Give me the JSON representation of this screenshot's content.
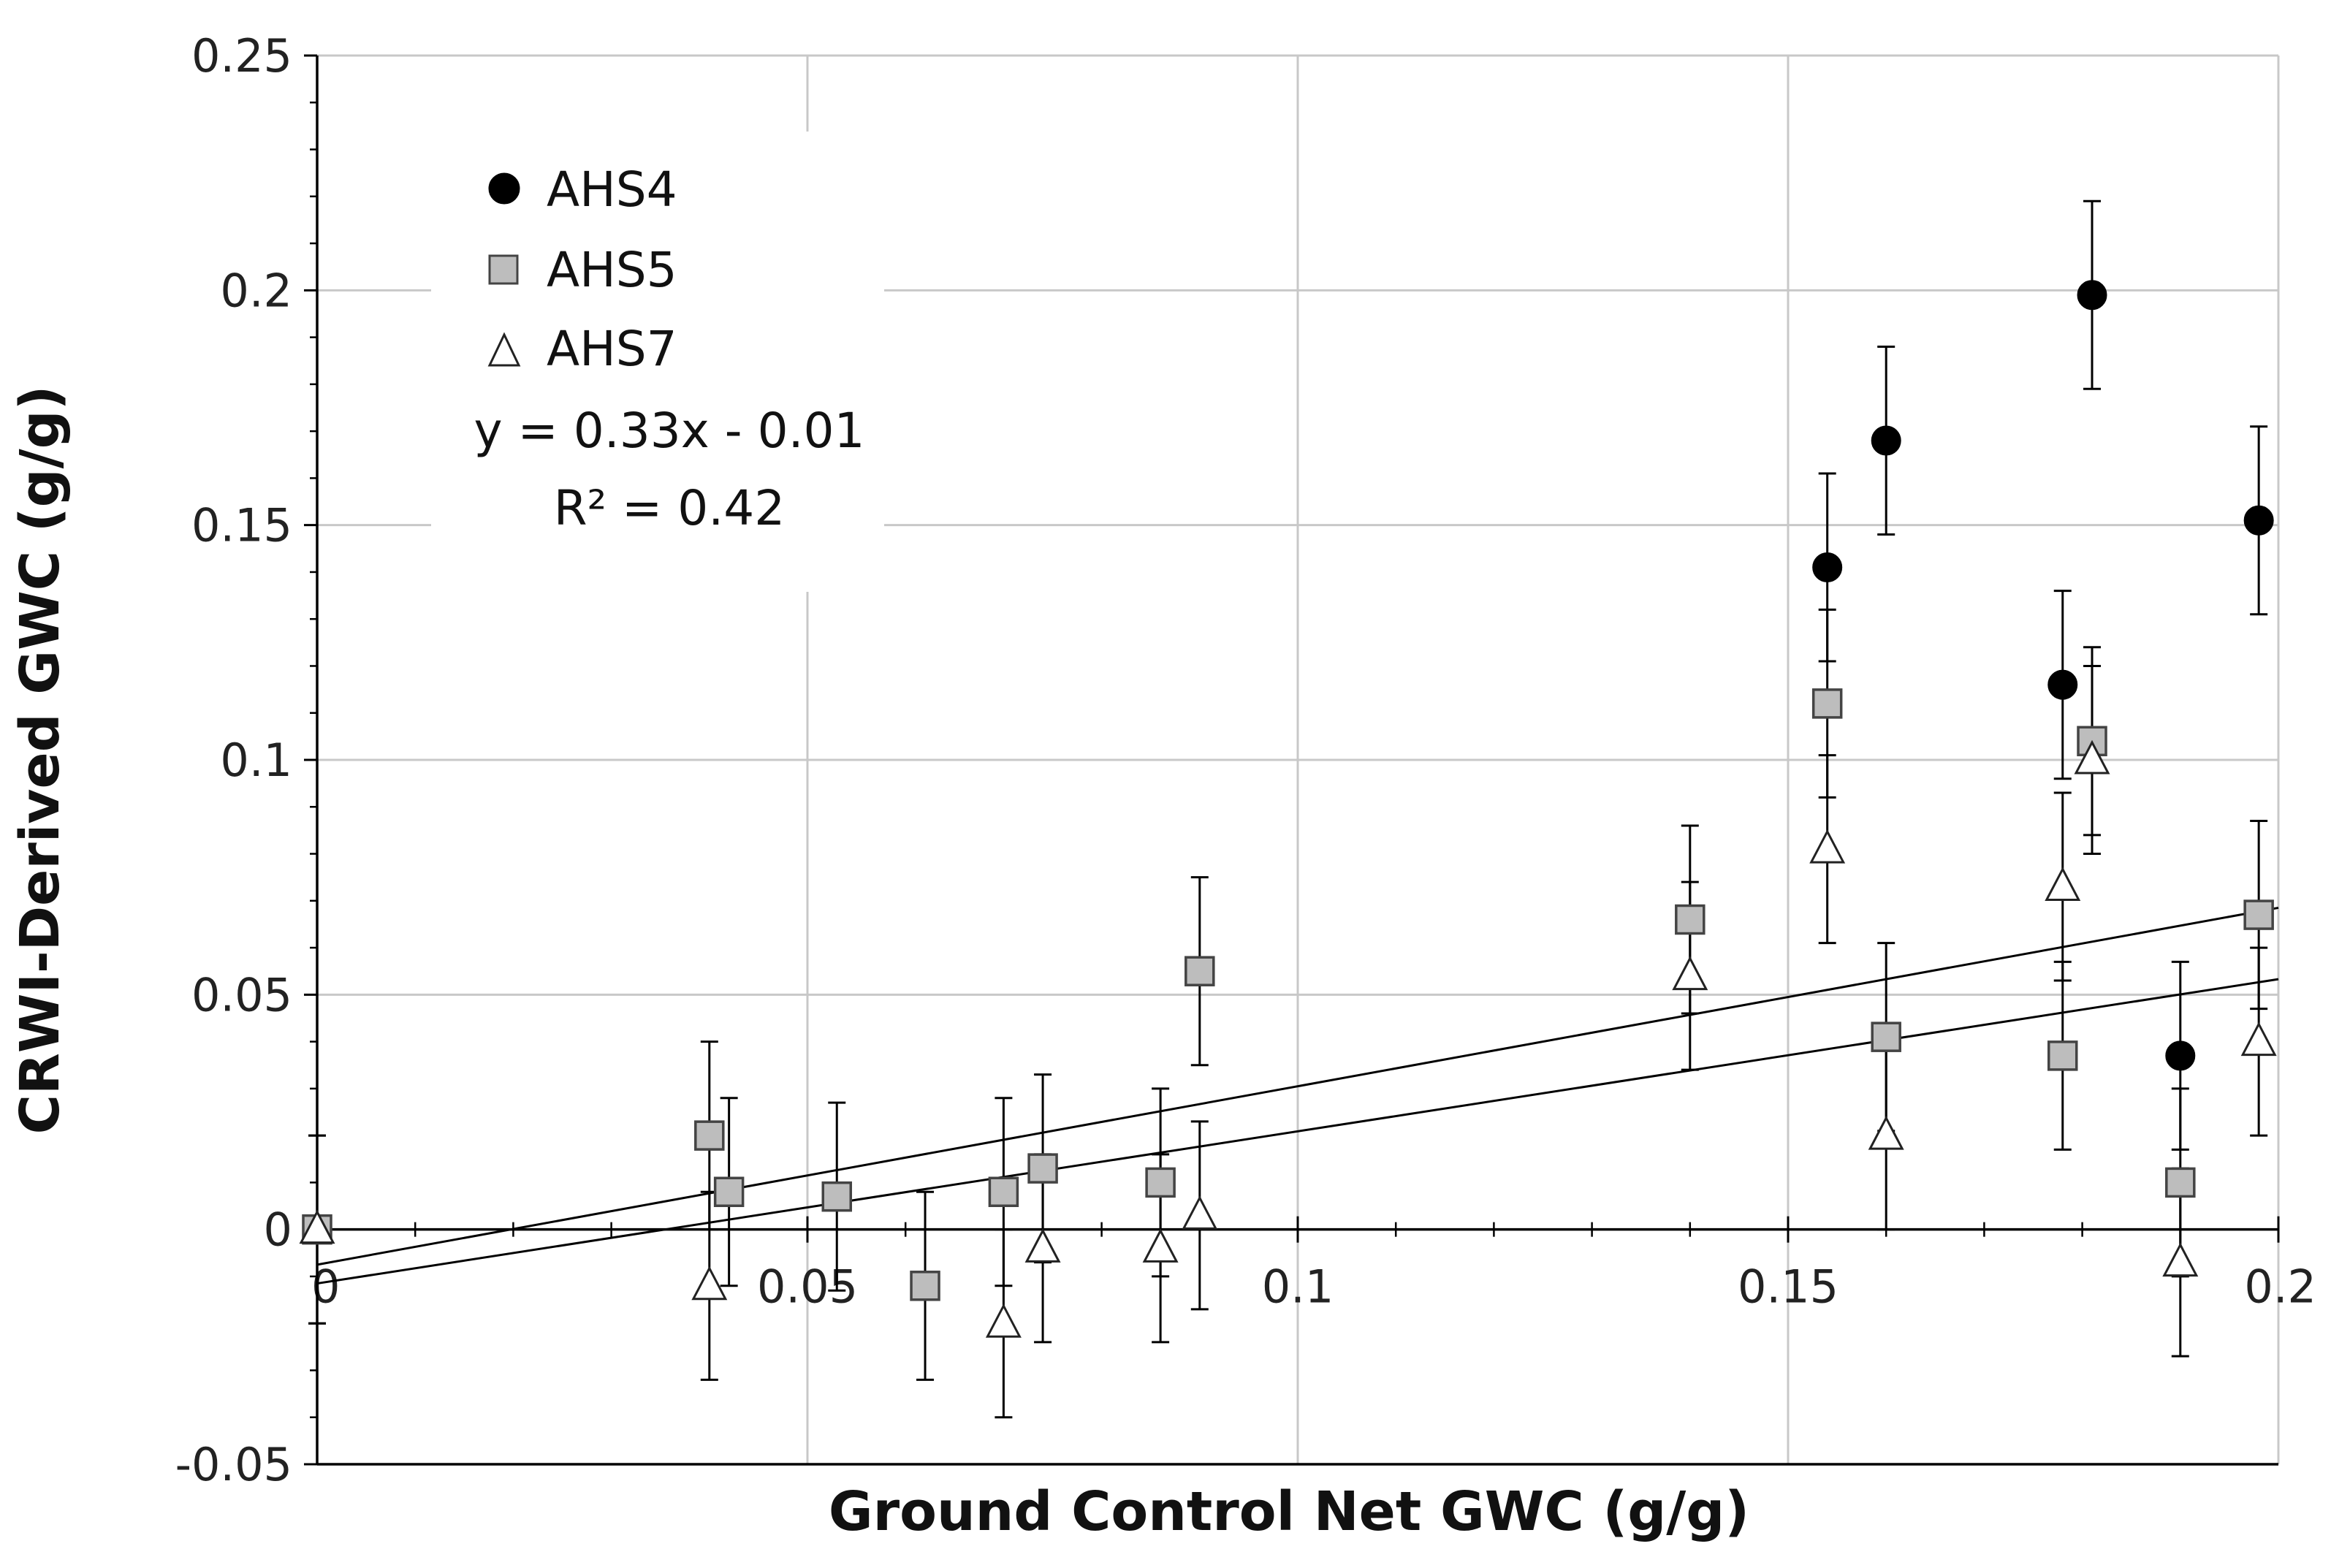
{
  "chart_data": {
    "type": "scatter",
    "xlabel": "Ground Control Net GWC (g/g)",
    "ylabel": "CRWI-Derived GWC (g/g)",
    "xlim": [
      0,
      0.2
    ],
    "ylim": [
      -0.05,
      0.25
    ],
    "x_ticks": [
      0,
      0.05,
      0.1,
      0.15,
      0.2
    ],
    "x_tick_labels": [
      "0",
      "0.05",
      "0.1",
      "0.15",
      "0.2"
    ],
    "y_ticks": [
      -0.05,
      0,
      0.05,
      0.1,
      0.15,
      0.2,
      0.25
    ],
    "y_tick_labels": [
      "-0.05",
      "0",
      "0.05",
      "0.1",
      "0.15",
      "0.2",
      "0.25"
    ],
    "grid": true,
    "legend_position": "top-left",
    "annotation": {
      "equation": "y = 0.33x - 0.01",
      "r2": "R² = 0.42"
    },
    "error_bar": 0.02,
    "trendlines": [
      {
        "x": [
          0,
          0.2
        ],
        "y": [
          -0.0075,
          0.0685
        ]
      },
      {
        "x": [
          0,
          0.2
        ],
        "y": [
          -0.0115,
          0.0533
        ]
      }
    ],
    "series": [
      {
        "name": "AHS4",
        "marker": "circle",
        "color": "#000000",
        "points": [
          {
            "x": 0.154,
            "y": 0.141
          },
          {
            "x": 0.16,
            "y": 0.168
          },
          {
            "x": 0.178,
            "y": 0.116
          },
          {
            "x": 0.181,
            "y": 0.199
          },
          {
            "x": 0.19,
            "y": 0.037
          },
          {
            "x": 0.198,
            "y": 0.151
          }
        ]
      },
      {
        "name": "AHS5",
        "marker": "square",
        "color": "#bdbdbd",
        "points": [
          {
            "x": 0.0,
            "y": 0.0
          },
          {
            "x": 0.04,
            "y": 0.02
          },
          {
            "x": 0.042,
            "y": 0.008
          },
          {
            "x": 0.053,
            "y": 0.007
          },
          {
            "x": 0.062,
            "y": -0.012
          },
          {
            "x": 0.07,
            "y": 0.008
          },
          {
            "x": 0.074,
            "y": 0.013
          },
          {
            "x": 0.086,
            "y": 0.01
          },
          {
            "x": 0.09,
            "y": 0.055
          },
          {
            "x": 0.14,
            "y": 0.066
          },
          {
            "x": 0.154,
            "y": 0.112
          },
          {
            "x": 0.16,
            "y": 0.041
          },
          {
            "x": 0.178,
            "y": 0.037
          },
          {
            "x": 0.181,
            "y": 0.104
          },
          {
            "x": 0.19,
            "y": 0.01
          },
          {
            "x": 0.198,
            "y": 0.067
          }
        ]
      },
      {
        "name": "AHS7",
        "marker": "triangle",
        "color": "#ffffff",
        "points": [
          {
            "x": 0.0,
            "y": 0.0
          },
          {
            "x": 0.04,
            "y": -0.012
          },
          {
            "x": 0.07,
            "y": -0.02
          },
          {
            "x": 0.074,
            "y": -0.004
          },
          {
            "x": 0.086,
            "y": -0.004
          },
          {
            "x": 0.09,
            "y": 0.003
          },
          {
            "x": 0.14,
            "y": 0.054
          },
          {
            "x": 0.154,
            "y": 0.081
          },
          {
            "x": 0.16,
            "y": 0.02
          },
          {
            "x": 0.178,
            "y": 0.073
          },
          {
            "x": 0.181,
            "y": 0.1
          },
          {
            "x": 0.19,
            "y": -0.007
          },
          {
            "x": 0.198,
            "y": 0.04
          }
        ]
      }
    ]
  }
}
